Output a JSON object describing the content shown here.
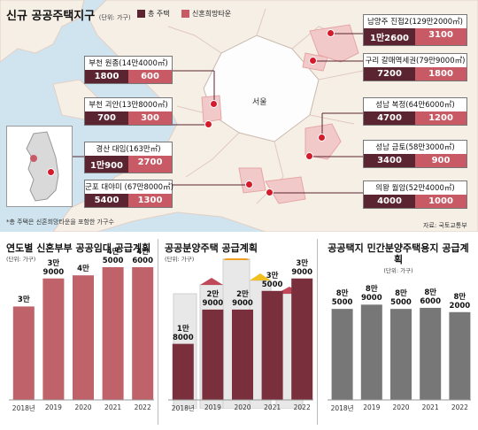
{
  "map": {
    "title": "신규 공공주택지구",
    "unit": "(단위: 가구)",
    "legend": [
      {
        "label": "총 주택",
        "color": "#5a2430"
      },
      {
        "label": "신혼희망타운",
        "color": "#c75a65"
      }
    ],
    "seoul_label": "서울",
    "note": "*총 주택은 신혼희망타운을 포함한 가구수",
    "source": "자료: 국토교통부",
    "sites": [
      {
        "name": "남양주 진접2(129만2000㎡)",
        "total": "1만2600",
        "newlywed": "3100"
      },
      {
        "name": "구리 갈매역세권(79만9000㎡)",
        "total": "7200",
        "newlywed": "1800"
      },
      {
        "name": "성남 복정(64만6000㎡)",
        "total": "4700",
        "newlywed": "1200"
      },
      {
        "name": "성남 금토(58만3000㎡)",
        "total": "3400",
        "newlywed": "900"
      },
      {
        "name": "의왕 월암(52만4000㎡)",
        "total": "4000",
        "newlywed": "1000"
      },
      {
        "name": "부천 원종(14만4000㎡)",
        "total": "1800",
        "newlywed": "600"
      },
      {
        "name": "부천 괴안(13만8000㎡)",
        "total": "700",
        "newlywed": "300"
      },
      {
        "name": "경산 대임(163만㎡)",
        "total": "1만900",
        "newlywed": "2700"
      },
      {
        "name": "군포 대야미 (67만8000㎡)",
        "total": "5400",
        "newlywed": "1300"
      }
    ]
  },
  "panels": [
    {
      "title": "연도별 신혼부부 공공임대 공급계획",
      "unit": "(단위: 가구)"
    },
    {
      "title": "공공분양주택 공급계획",
      "unit": "(단위: 가구)"
    },
    {
      "title": "공공택지 민간분양주택용지 공급계획",
      "unit": "(단위: 가구)"
    }
  ],
  "chart_data": [
    {
      "type": "bar",
      "title": "연도별 신혼부부 공공임대 공급계획",
      "categories": [
        "2018년",
        "2019",
        "2020",
        "2021",
        "2022"
      ],
      "values": [
        30000,
        39000,
        40000,
        45000,
        46000
      ],
      "value_labels": [
        "3만",
        "3만\n9000",
        "4만",
        "4만\n5000",
        "4만\n6000"
      ],
      "color": "#c0626a"
    },
    {
      "type": "bar",
      "title": "공공분양주택 공급계획",
      "categories": [
        "2018년",
        "2019",
        "2020",
        "2021",
        "2022"
      ],
      "values": [
        18000,
        29000,
        29000,
        35000,
        39000
      ],
      "value_labels": [
        "1만\n8000",
        "2만\n9000",
        "2만\n9000",
        "3만\n5000",
        "3만\n9000"
      ],
      "color": "#7a2f3d"
    },
    {
      "type": "bar",
      "title": "공공택지 민간분양주택용지 공급계획",
      "categories": [
        "2018년",
        "2019",
        "2020",
        "2021",
        "2022"
      ],
      "values": [
        85000,
        89000,
        85000,
        86000,
        82000
      ],
      "value_labels": [
        "8만\n5000",
        "8만\n9000",
        "8만\n5000",
        "8만\n6000",
        "8만\n2000"
      ],
      "color": "#777777"
    }
  ]
}
